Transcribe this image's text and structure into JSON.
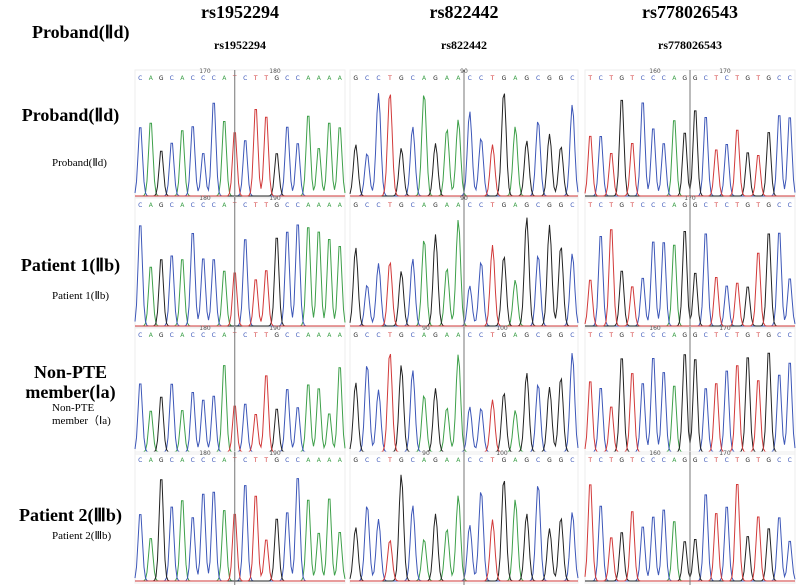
{
  "corner_label": "Proband(Ⅱd)",
  "columns": [
    {
      "title": "rs1952294",
      "subtitle": "rs1952294"
    },
    {
      "title": "rs822442",
      "subtitle": "rs822442"
    },
    {
      "title": "rs778026543",
      "subtitle": "rs778026543"
    }
  ],
  "rows": [
    {
      "label": "Proband(Ⅱd)",
      "sublabel": "Proband(Ⅱd)"
    },
    {
      "label": "Patient 1(Ⅱb)",
      "sublabel": "Patient 1(Ⅱb)"
    },
    {
      "label": "Non-PTE member(Ⅰa)",
      "sublabel": "Non-PTE member（Ⅰa)"
    },
    {
      "label": "Patient 2(Ⅲb)",
      "sublabel": "Patient 2(Ⅲb)"
    }
  ],
  "panels": [
    [
      {
        "bases": "CAGCACCCATCTTGCCAAAA",
        "positions": [
          "170",
          "180"
        ]
      },
      {
        "bases": "GCCTGCAGAACCTGAGCGGC",
        "positions": [
          "90"
        ]
      },
      {
        "bases": "TCTGTCCCAGGCTCTGTGCC",
        "positions": [
          "160",
          "170"
        ]
      }
    ],
    [
      {
        "bases": "CAGCACCCATCTTGCCAAAA",
        "positions": [
          "180",
          "190"
        ]
      },
      {
        "bases": "GCCTGCAGAACCTGAGCGGC",
        "positions": [
          "90"
        ]
      },
      {
        "bases": "TCTGTCCCAGGCTCTGTGCC",
        "positions": [
          "170"
        ]
      }
    ],
    [
      {
        "bases": "CAGCACCCATCTTGCCAAAA",
        "positions": [
          "180",
          "190"
        ]
      },
      {
        "bases": "GCCTGCAGAACCTGAGCGGC",
        "positions": [
          "90",
          "100"
        ]
      },
      {
        "bases": "TCTGTCCCAGGCTCTGTGCC",
        "positions": [
          "160",
          "170"
        ]
      }
    ],
    [
      {
        "bases": "CAGCACCCATCTTGCCAAAA",
        "positions": [
          "180",
          "190"
        ]
      },
      {
        "bases": "GCCTGCAGAACCTGAGCGGC",
        "positions": [
          "90",
          "100"
        ]
      },
      {
        "bases": "TCTGTCCCAGGCTCTGTGCC",
        "positions": [
          "160",
          "170"
        ]
      }
    ]
  ]
}
